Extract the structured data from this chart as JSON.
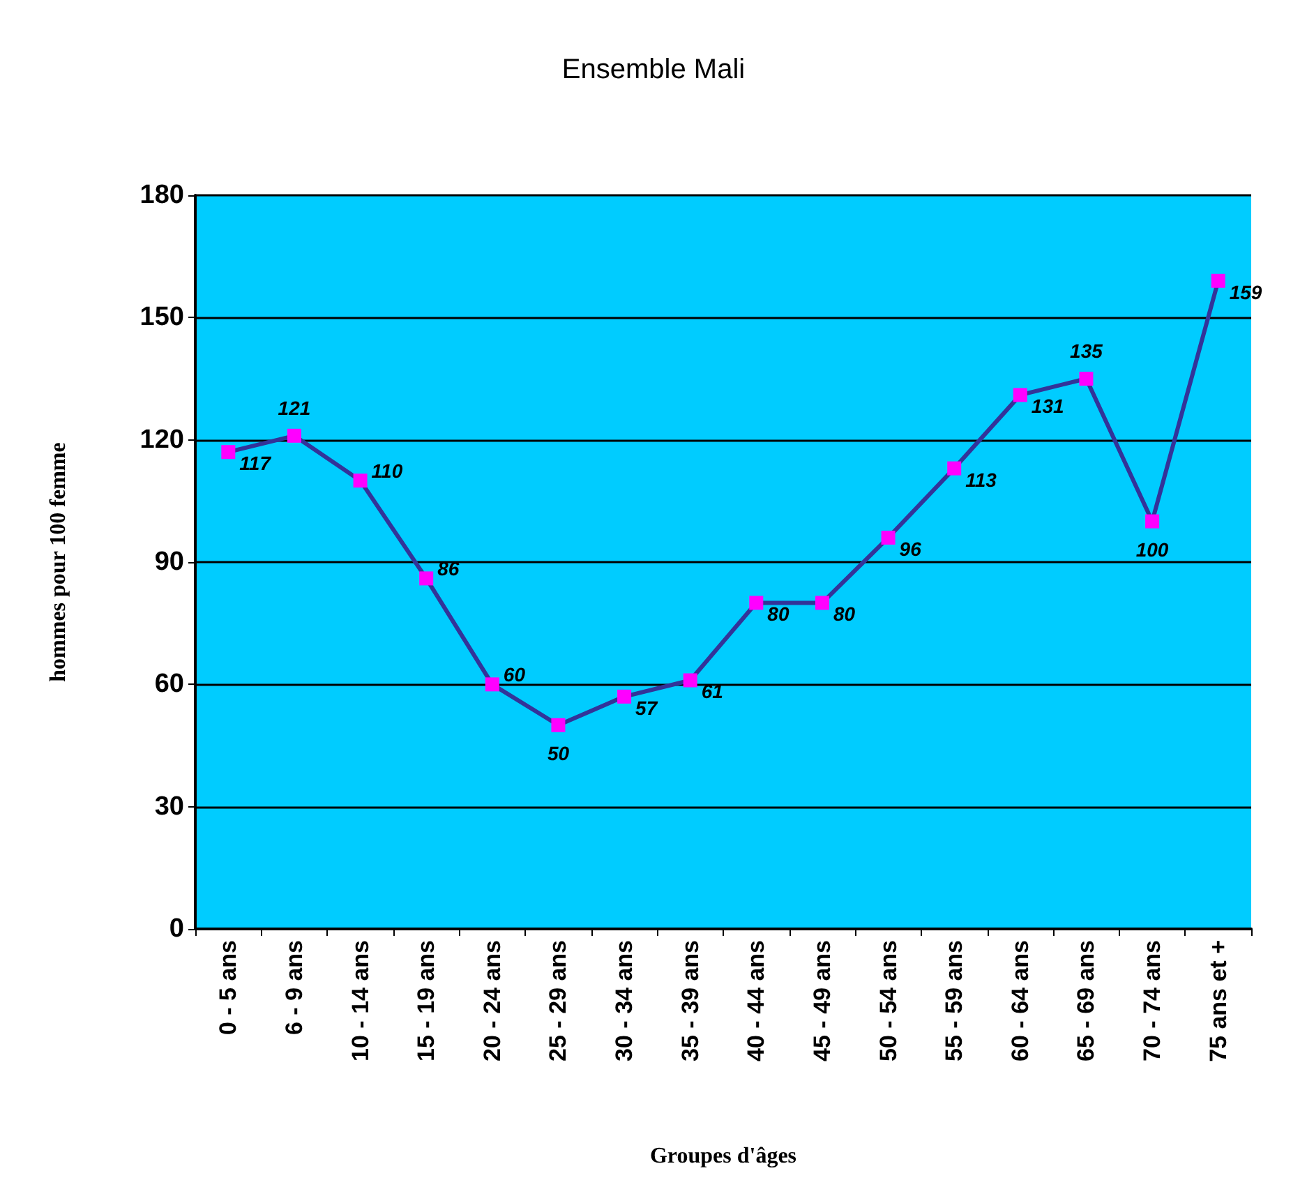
{
  "chart_data": {
    "type": "line",
    "title": "Ensemble Mali",
    "xlabel": "Groupes d'âges",
    "ylabel": "hommes pour 100 femme",
    "categories": [
      "0 - 5 ans",
      "6 - 9 ans",
      "10 - 14 ans",
      "15 - 19 ans",
      "20 - 24 ans",
      "25 - 29 ans",
      "30 - 34 ans",
      "35 - 39 ans",
      "40 - 44 ans",
      "45 - 49 ans",
      "50 - 54 ans",
      "55 - 59 ans",
      "60 - 64 ans",
      "65 - 69 ans",
      "70 - 74 ans",
      "75 ans et +"
    ],
    "series": [
      {
        "color": "#333399",
        "values": [
          117,
          121,
          110,
          86,
          60,
          50,
          57,
          61,
          80,
          80,
          96,
          113,
          131,
          135,
          100,
          159
        ]
      }
    ],
    "ylim": [
      0,
      180
    ],
    "yticks": [
      0,
      30,
      60,
      90,
      120,
      150,
      180
    ],
    "grid": "y",
    "marker": "square",
    "line_style": "solid",
    "data_labels": true
  }
}
